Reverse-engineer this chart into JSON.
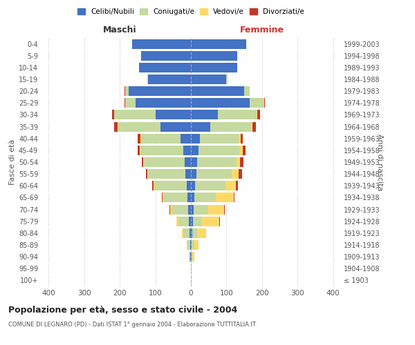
{
  "age_groups": [
    "100+",
    "95-99",
    "90-94",
    "85-89",
    "80-84",
    "75-79",
    "70-74",
    "65-69",
    "60-64",
    "55-59",
    "50-54",
    "45-49",
    "40-44",
    "35-39",
    "30-34",
    "25-29",
    "20-24",
    "15-19",
    "10-14",
    "5-9",
    "0-4"
  ],
  "birth_years": [
    "≤ 1903",
    "1904-1908",
    "1909-1913",
    "1914-1918",
    "1919-1923",
    "1924-1928",
    "1929-1933",
    "1934-1938",
    "1939-1943",
    "1944-1948",
    "1949-1953",
    "1954-1958",
    "1959-1963",
    "1964-1968",
    "1969-1973",
    "1974-1978",
    "1979-1983",
    "1984-1988",
    "1989-1993",
    "1994-1998",
    "1999-2003"
  ],
  "maschi": {
    "celibe": [
      0,
      0,
      1,
      2,
      3,
      5,
      8,
      10,
      12,
      15,
      18,
      22,
      30,
      85,
      100,
      155,
      175,
      120,
      145,
      140,
      165
    ],
    "coniugato": [
      0,
      0,
      3,
      8,
      18,
      30,
      45,
      65,
      90,
      105,
      115,
      120,
      110,
      120,
      115,
      30,
      10,
      2,
      1,
      0,
      0
    ],
    "vedovo": [
      0,
      0,
      1,
      2,
      4,
      5,
      6,
      4,
      3,
      2,
      1,
      1,
      1,
      1,
      1,
      0,
      0,
      0,
      0,
      0,
      0
    ],
    "divorziato": [
      0,
      0,
      0,
      0,
      0,
      1,
      2,
      3,
      3,
      5,
      5,
      6,
      8,
      10,
      5,
      2,
      1,
      0,
      0,
      0,
      0
    ]
  },
  "femmine": {
    "nubile": [
      0,
      0,
      1,
      2,
      3,
      5,
      8,
      10,
      12,
      15,
      18,
      22,
      25,
      55,
      75,
      165,
      150,
      100,
      130,
      130,
      155
    ],
    "coniugata": [
      0,
      0,
      3,
      7,
      15,
      25,
      40,
      60,
      85,
      100,
      110,
      115,
      110,
      115,
      110,
      40,
      15,
      3,
      1,
      0,
      0
    ],
    "vedova": [
      0,
      1,
      5,
      12,
      25,
      50,
      45,
      50,
      30,
      20,
      10,
      8,
      5,
      3,
      2,
      1,
      0,
      0,
      0,
      0,
      0
    ],
    "divorziata": [
      0,
      0,
      0,
      0,
      0,
      1,
      2,
      3,
      5,
      8,
      10,
      8,
      5,
      10,
      8,
      3,
      1,
      0,
      0,
      0,
      0
    ]
  },
  "colors": {
    "celibe": "#4472C4",
    "coniugato": "#C5D9A0",
    "vedovo": "#FFD966",
    "divorziato": "#C0392B"
  },
  "xlim": 420,
  "title": "Popolazione per età, sesso e stato civile - 2004",
  "subtitle": "COMUNE DI LEGNARO (PD) - Dati ISTAT 1° gennaio 2004 - Elaborazione TUTTITALIA.IT",
  "ylabel_left": "Fasce di età",
  "ylabel_right": "Anni di nascita",
  "xlabel_left": "Maschi",
  "xlabel_right": "Femmine",
  "bg_color": "#ffffff",
  "grid_color": "#cccccc",
  "text_color": "#555555",
  "legend_labels": [
    "Celibi/Nubili",
    "Coniugati/e",
    "Vedovi/e",
    "Divorziati/e"
  ]
}
